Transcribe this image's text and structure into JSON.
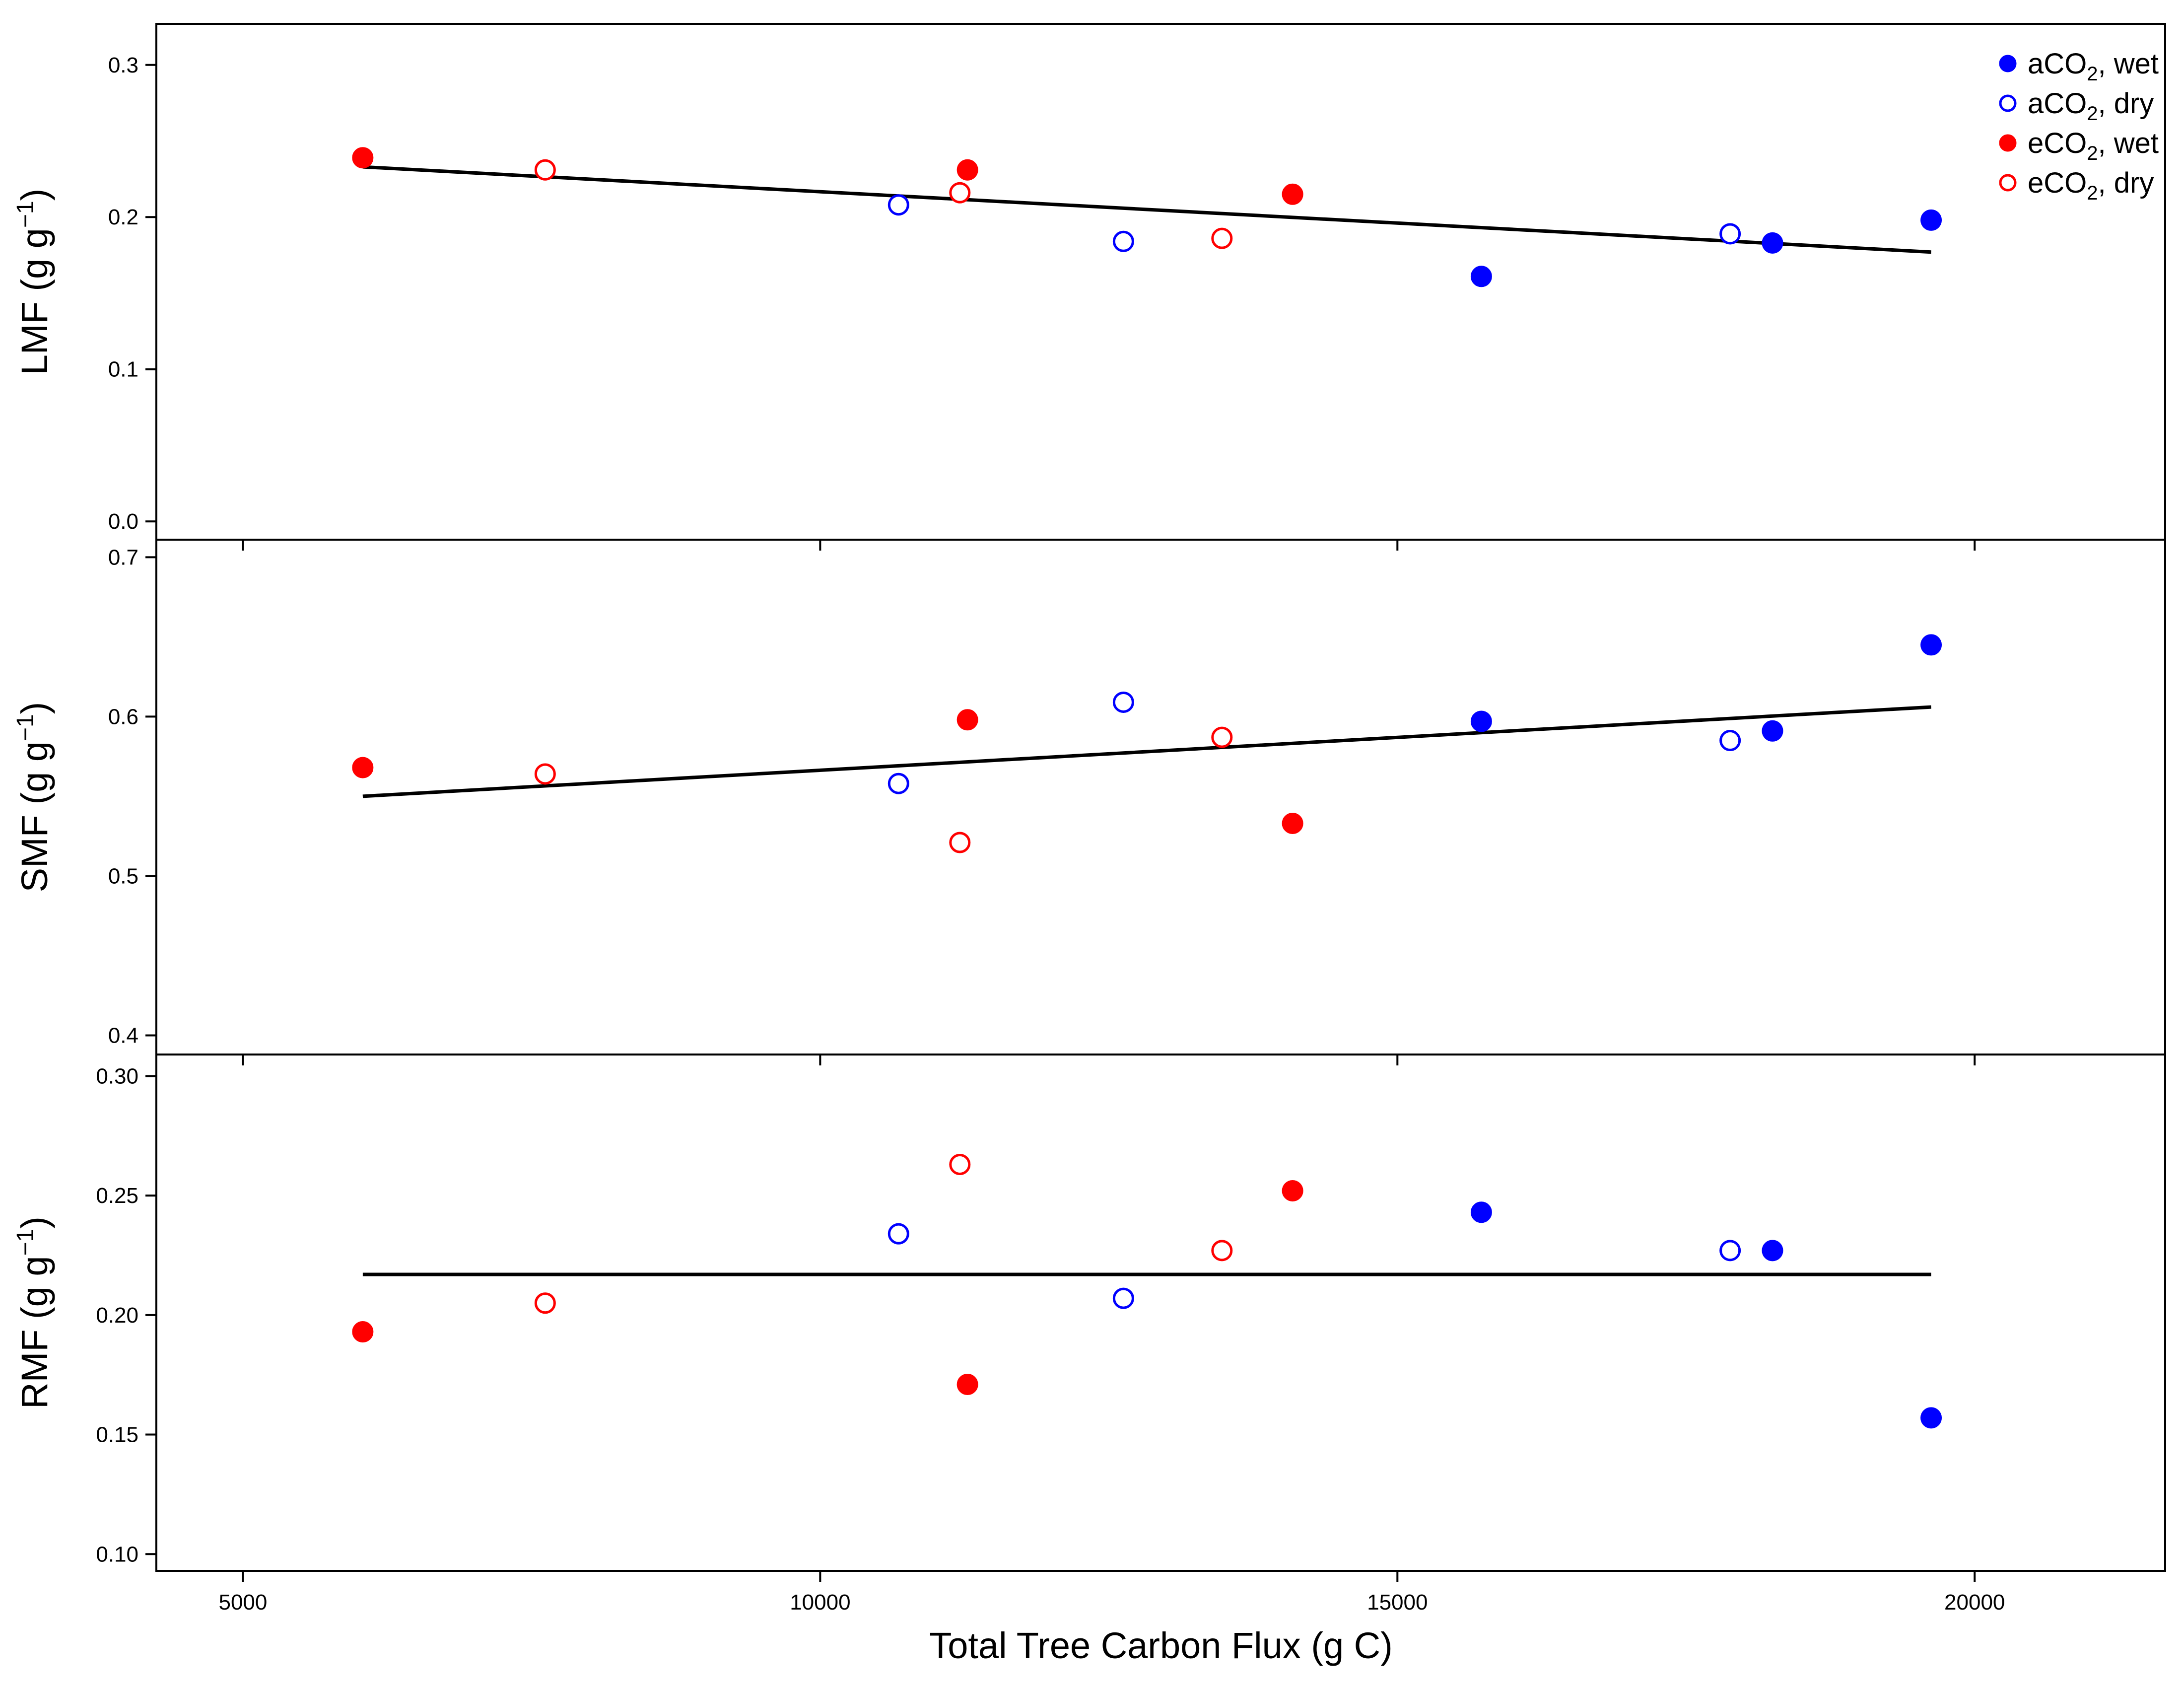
{
  "chart_data": {
    "type": "scatter",
    "xlabel": "Total Tree Carbon Flux  (g C)",
    "xlim": [
      4250,
      21650
    ],
    "xticks": [
      5000,
      10000,
      15000,
      20000
    ],
    "xtick_labels": [
      "5000",
      "10000",
      "15000",
      "20000"
    ],
    "x_values": [
      6038,
      7618,
      10679,
      11210,
      11276,
      12627,
      13480,
      14092,
      15727,
      17882,
      18249,
      19623
    ],
    "legend": {
      "placement": "top-right",
      "entries": [
        {
          "label_main": "aCO",
          "label_sub": "2",
          "label_rest": ", wet",
          "color": "#0000ff",
          "filled": true
        },
        {
          "label_main": "aCO",
          "label_sub": "2",
          "label_rest": ", dry",
          "color": "#0000ff",
          "filled": false
        },
        {
          "label_main": "eCO",
          "label_sub": "2",
          "label_rest": ", wet",
          "color": "#ff0000",
          "filled": true
        },
        {
          "label_main": "eCO",
          "label_sub": "2",
          "label_rest": ", dry",
          "color": "#ff0000",
          "filled": false
        }
      ]
    },
    "groups": {
      "aCO2_wet": {
        "color": "#0000ff",
        "filled": true
      },
      "aCO2_dry": {
        "color": "#0000ff",
        "filled": false
      },
      "eCO2_wet": {
        "color": "#ff0000",
        "filled": true
      },
      "eCO2_dry": {
        "color": "#ff0000",
        "filled": false
      }
    },
    "panels": [
      {
        "ylabel_main": "LMF  (g g",
        "ylabel_sup": "−1",
        "ylabel_end": ")",
        "ylim": [
          -0.012,
          0.327
        ],
        "yticks": [
          0.0,
          0.1,
          0.2,
          0.3
        ],
        "ytick_labels": [
          "0.0",
          "0.1",
          "0.2",
          "0.3"
        ],
        "points": [
          {
            "x": 6038,
            "y": 0.239,
            "group": "eCO2_wet"
          },
          {
            "x": 7618,
            "y": 0.231,
            "group": "eCO2_dry"
          },
          {
            "x": 10679,
            "y": 0.208,
            "group": "aCO2_dry"
          },
          {
            "x": 11210,
            "y": 0.216,
            "group": "eCO2_dry"
          },
          {
            "x": 11276,
            "y": 0.231,
            "group": "eCO2_wet"
          },
          {
            "x": 12627,
            "y": 0.184,
            "group": "aCO2_dry"
          },
          {
            "x": 13480,
            "y": 0.186,
            "group": "eCO2_dry"
          },
          {
            "x": 14092,
            "y": 0.215,
            "group": "eCO2_wet"
          },
          {
            "x": 15727,
            "y": 0.161,
            "group": "aCO2_wet"
          },
          {
            "x": 17882,
            "y": 0.189,
            "group": "aCO2_dry"
          },
          {
            "x": 18249,
            "y": 0.183,
            "group": "aCO2_wet"
          },
          {
            "x": 19623,
            "y": 0.198,
            "group": "aCO2_wet"
          }
        ],
        "fit_line": {
          "x": [
            6038,
            19623
          ],
          "y": [
            0.233,
            0.177
          ]
        }
      },
      {
        "ylabel_main": "SMF  (g g",
        "ylabel_sup": "−1",
        "ylabel_end": ")",
        "ylim": [
          0.388,
          0.711
        ],
        "yticks": [
          0.4,
          0.5,
          0.6,
          0.7
        ],
        "ytick_labels": [
          "0.4",
          "0.5",
          "0.6",
          "0.7"
        ],
        "points": [
          {
            "x": 6038,
            "y": 0.568,
            "group": "eCO2_wet"
          },
          {
            "x": 7618,
            "y": 0.564,
            "group": "eCO2_dry"
          },
          {
            "x": 10679,
            "y": 0.558,
            "group": "aCO2_dry"
          },
          {
            "x": 11210,
            "y": 0.521,
            "group": "eCO2_dry"
          },
          {
            "x": 11276,
            "y": 0.598,
            "group": "eCO2_wet"
          },
          {
            "x": 12627,
            "y": 0.609,
            "group": "aCO2_dry"
          },
          {
            "x": 13480,
            "y": 0.587,
            "group": "eCO2_dry"
          },
          {
            "x": 14092,
            "y": 0.533,
            "group": "eCO2_wet"
          },
          {
            "x": 15727,
            "y": 0.597,
            "group": "aCO2_wet"
          },
          {
            "x": 17882,
            "y": 0.585,
            "group": "aCO2_dry"
          },
          {
            "x": 18249,
            "y": 0.591,
            "group": "aCO2_wet"
          },
          {
            "x": 19623,
            "y": 0.645,
            "group": "aCO2_wet"
          }
        ],
        "fit_line": {
          "x": [
            6038,
            19623
          ],
          "y": [
            0.55,
            0.606
          ]
        }
      },
      {
        "ylabel_main": "RMF  (g g",
        "ylabel_sup": "−1",
        "ylabel_end": ")",
        "ylim": [
          0.093,
          0.309
        ],
        "yticks": [
          0.1,
          0.15,
          0.2,
          0.25,
          0.3
        ],
        "ytick_labels": [
          "0.10",
          "0.15",
          "0.20",
          "0.25",
          "0.30"
        ],
        "points": [
          {
            "x": 6038,
            "y": 0.193,
            "group": "eCO2_wet"
          },
          {
            "x": 7618,
            "y": 0.205,
            "group": "eCO2_dry"
          },
          {
            "x": 10679,
            "y": 0.234,
            "group": "aCO2_dry"
          },
          {
            "x": 11210,
            "y": 0.263,
            "group": "eCO2_dry"
          },
          {
            "x": 11276,
            "y": 0.171,
            "group": "eCO2_wet"
          },
          {
            "x": 12627,
            "y": 0.207,
            "group": "aCO2_dry"
          },
          {
            "x": 13480,
            "y": 0.227,
            "group": "eCO2_dry"
          },
          {
            "x": 14092,
            "y": 0.252,
            "group": "eCO2_wet"
          },
          {
            "x": 15727,
            "y": 0.243,
            "group": "aCO2_wet"
          },
          {
            "x": 17882,
            "y": 0.227,
            "group": "aCO2_dry"
          },
          {
            "x": 18249,
            "y": 0.227,
            "group": "aCO2_wet"
          },
          {
            "x": 19623,
            "y": 0.157,
            "group": "aCO2_wet"
          }
        ],
        "fit_line": {
          "x": [
            6038,
            19623
          ],
          "y": [
            0.217,
            0.217
          ]
        }
      }
    ]
  }
}
